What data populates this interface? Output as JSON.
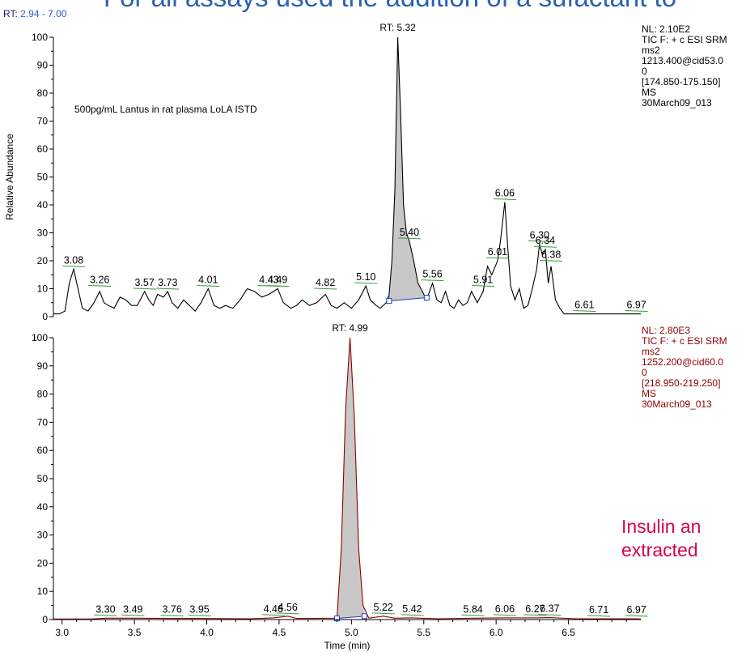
{
  "headline": "For all assays used the addition of a sufactant to",
  "rt_range": {
    "label": "RT:",
    "value": "2.94 - 7.00"
  },
  "callout": {
    "line1": "Insulin an",
    "line2": "extracted"
  },
  "chart_data": [
    {
      "type": "line",
      "title": "",
      "xlabel": "Time (min)",
      "ylabel": "Relative Abundance",
      "xlim": [
        2.94,
        7.0
      ],
      "ylim": [
        0,
        100
      ],
      "yticks": [
        0,
        10,
        20,
        30,
        40,
        50,
        60,
        70,
        80,
        90,
        100
      ],
      "line_color": "#000000",
      "fill_color": "#c8c8c8",
      "baseline_color": "#1f3cc4",
      "annotation": "500pg/mL Lantus in rat plasma LoLA ISTD",
      "main_peak_label": "RT: 5.32",
      "info": [
        "NL: 2.10E2",
        "TIC F: + c ESI SRM",
        "ms2",
        "1213.400@cid53.0",
        "0",
        "[174.850-175.150]",
        "MS",
        "30March09_013"
      ],
      "trace": {
        "x": [
          2.94,
          2.98,
          3.02,
          3.05,
          3.08,
          3.11,
          3.14,
          3.18,
          3.22,
          3.26,
          3.29,
          3.32,
          3.36,
          3.4,
          3.44,
          3.48,
          3.52,
          3.57,
          3.6,
          3.63,
          3.66,
          3.7,
          3.73,
          3.76,
          3.8,
          3.84,
          3.88,
          3.92,
          3.96,
          4.01,
          4.05,
          4.09,
          4.13,
          4.18,
          4.23,
          4.28,
          4.33,
          4.38,
          4.43,
          4.49,
          4.53,
          4.58,
          4.62,
          4.66,
          4.71,
          4.76,
          4.82,
          4.86,
          4.9,
          4.95,
          5.0,
          5.05,
          5.1,
          5.13,
          5.17,
          5.2,
          5.24,
          5.26,
          5.28,
          5.3,
          5.32,
          5.34,
          5.36,
          5.38,
          5.4,
          5.43,
          5.46,
          5.49,
          5.52,
          5.56,
          5.59,
          5.62,
          5.65,
          5.68,
          5.71,
          5.74,
          5.77,
          5.8,
          5.83,
          5.87,
          5.91,
          5.94,
          5.97,
          6.01,
          6.03,
          6.06,
          6.08,
          6.1,
          6.13,
          6.16,
          6.19,
          6.22,
          6.25,
          6.28,
          6.3,
          6.32,
          6.34,
          6.36,
          6.38,
          6.41,
          6.44,
          6.47,
          6.5,
          6.55,
          6.61,
          6.7,
          6.8,
          6.9,
          6.97,
          7.0
        ],
        "y": [
          1,
          1,
          2,
          12,
          17,
          10,
          3,
          2,
          5,
          9,
          5,
          4,
          3,
          7,
          6,
          4,
          4,
          9,
          6,
          4,
          8,
          7,
          9,
          5,
          3,
          6,
          4,
          2,
          5,
          10,
          4,
          3,
          4,
          3,
          6,
          10,
          9,
          7,
          8,
          10,
          5,
          3,
          4,
          6,
          4,
          5,
          8,
          4,
          3,
          5,
          3,
          6,
          11,
          6,
          4,
          3,
          5,
          8,
          20,
          45,
          100,
          72,
          40,
          30,
          27,
          20,
          12,
          9,
          6,
          12,
          6,
          5,
          9,
          4,
          3,
          6,
          4,
          5,
          9,
          5,
          9,
          18,
          15,
          20,
          27,
          41,
          25,
          11,
          6,
          10,
          3,
          4,
          10,
          17,
          26,
          22,
          24,
          12,
          18,
          6,
          3,
          1,
          1,
          1,
          1,
          1,
          1,
          1,
          1,
          1
        ]
      },
      "peak_area": {
        "x_from": 5.26,
        "x_to": 5.52,
        "baseline": [
          5.6,
          6.8
        ]
      },
      "peak_labels": [
        {
          "label": "3.08",
          "x": 3.08,
          "y": 17
        },
        {
          "label": "3.26",
          "x": 3.26,
          "y": 10
        },
        {
          "label": "3.57",
          "x": 3.57,
          "y": 9
        },
        {
          "label": "3.73",
          "x": 3.73,
          "y": 9
        },
        {
          "label": "4.01",
          "x": 4.01,
          "y": 10
        },
        {
          "label": "4.43",
          "x": 4.43,
          "y": 10
        },
        {
          "label": "4.49",
          "x": 4.49,
          "y": 10
        },
        {
          "label": "4.82",
          "x": 4.82,
          "y": 9
        },
        {
          "label": "5.10",
          "x": 5.1,
          "y": 11
        },
        {
          "label": "5.40",
          "x": 5.4,
          "y": 27
        },
        {
          "label": "5.56",
          "x": 5.56,
          "y": 12
        },
        {
          "label": "5.91",
          "x": 5.91,
          "y": 10
        },
        {
          "label": "6.01",
          "x": 6.01,
          "y": 20
        },
        {
          "label": "6.06",
          "x": 6.06,
          "y": 41
        },
        {
          "label": "6.30",
          "x": 6.3,
          "y": 26
        },
        {
          "label": "6.34",
          "x": 6.34,
          "y": 24
        },
        {
          "label": "6.38",
          "x": 6.38,
          "y": 19
        },
        {
          "label": "6.61",
          "x": 6.61,
          "y": 1
        },
        {
          "label": "6.97",
          "x": 6.97,
          "y": 1
        }
      ]
    },
    {
      "type": "line",
      "title": "",
      "xlabel": "Time (min)",
      "ylabel": "",
      "xlim": [
        2.94,
        7.0
      ],
      "ylim": [
        0,
        100
      ],
      "yticks": [
        0,
        10,
        20,
        30,
        40,
        50,
        60,
        70,
        80,
        90,
        100
      ],
      "xticks": [
        3.0,
        3.5,
        4.0,
        4.5,
        5.0,
        5.5,
        6.0,
        6.5
      ],
      "xtick_labels": [
        "3.0",
        "3.5",
        "4.0",
        "4.5",
        "5.0",
        "5.5",
        "6.0",
        "6.5"
      ],
      "line_color": "#8b0000",
      "fill_color": "#c8c8c8",
      "baseline_color": "#1f3cc4",
      "main_peak_label": "RT: 4.99",
      "info": [
        "NL: 2.80E3",
        "TIC F: + c ESI SRM",
        "ms2",
        "1252.200@cid60.0",
        "0",
        "[218.950-219.250]",
        "MS",
        "30March09_013"
      ],
      "trace": {
        "x": [
          2.94,
          3.2,
          3.3,
          3.49,
          3.76,
          3.95,
          4.3,
          4.46,
          4.56,
          4.62,
          4.9,
          4.93,
          4.96,
          4.99,
          5.02,
          5.05,
          5.08,
          5.12,
          5.22,
          5.3,
          5.42,
          5.6,
          5.84,
          6.06,
          6.27,
          6.37,
          6.55,
          6.71,
          6.97,
          7.0
        ],
        "y": [
          0.2,
          0.2,
          0.5,
          0.5,
          0.4,
          0.4,
          0.3,
          0.6,
          1.2,
          0.4,
          0.5,
          25,
          75,
          100,
          72,
          25,
          5,
          0.5,
          1.2,
          0.5,
          0.6,
          0.3,
          0.5,
          0.6,
          0.6,
          0.7,
          0.3,
          0.3,
          0.3,
          0.2
        ]
      },
      "peak_area": {
        "x_from": 4.9,
        "x_to": 5.09,
        "baseline": [
          0.4,
          1.2
        ]
      },
      "peak_labels": [
        {
          "label": "3.30",
          "x": 3.3,
          "y": 0.5
        },
        {
          "label": "3.49",
          "x": 3.49,
          "y": 0.5
        },
        {
          "label": "3.76",
          "x": 3.76,
          "y": 0.4
        },
        {
          "label": "3.95",
          "x": 3.95,
          "y": 0.4
        },
        {
          "label": "4.46",
          "x": 4.46,
          "y": 0.6
        },
        {
          "label": "4.56",
          "x": 4.56,
          "y": 1.2
        },
        {
          "label": "5.22",
          "x": 5.22,
          "y": 1.2
        },
        {
          "label": "5.42",
          "x": 5.42,
          "y": 0.6
        },
        {
          "label": "5.84",
          "x": 5.84,
          "y": 0.5
        },
        {
          "label": "6.06",
          "x": 6.06,
          "y": 0.6
        },
        {
          "label": "6.27",
          "x": 6.27,
          "y": 0.6
        },
        {
          "label": "6.37",
          "x": 6.37,
          "y": 0.7
        },
        {
          "label": "6.71",
          "x": 6.71,
          "y": 0.3
        },
        {
          "label": "6.97",
          "x": 6.97,
          "y": 0.3
        }
      ]
    }
  ]
}
